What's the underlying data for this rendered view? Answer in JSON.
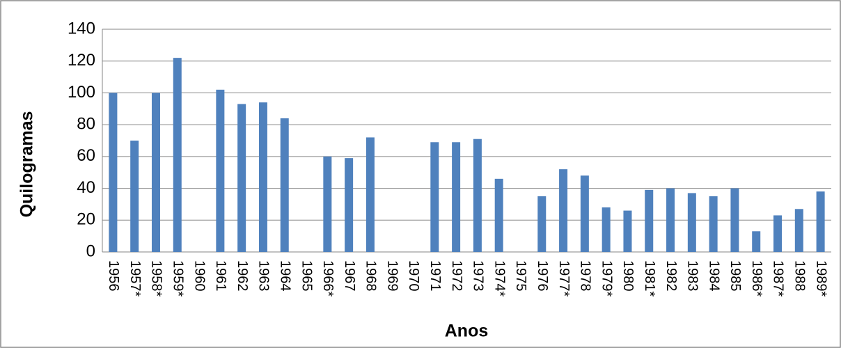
{
  "chart_data": {
    "type": "bar",
    "x_label": "Anos",
    "y_label": "Quilogramas",
    "categories": [
      "1956",
      "1957*",
      "1958*",
      "1959*",
      "1960",
      "1961",
      "1962",
      "1963",
      "1964",
      "1965",
      "1966*",
      "1967",
      "1968",
      "1969",
      "1970",
      "1971",
      "1972",
      "1973",
      "1974*",
      "1975",
      "1976",
      "1977*",
      "1978",
      "1979*",
      "1980",
      "1981*",
      "1982",
      "1983",
      "1984",
      "1985",
      "1986*",
      "1987*",
      "1988",
      "1989*"
    ],
    "values": [
      100,
      70,
      100,
      122,
      null,
      102,
      93,
      94,
      84,
      null,
      60,
      59,
      72,
      null,
      null,
      69,
      69,
      71,
      46,
      null,
      35,
      52,
      48,
      28,
      26,
      39,
      40,
      37,
      35,
      40,
      13,
      23,
      27,
      38
    ],
    "color": "#4f81bd",
    "ylim": [
      0,
      140
    ],
    "yticks": [
      0,
      20,
      40,
      60,
      80,
      100,
      120,
      140
    ],
    "grid": true
  }
}
